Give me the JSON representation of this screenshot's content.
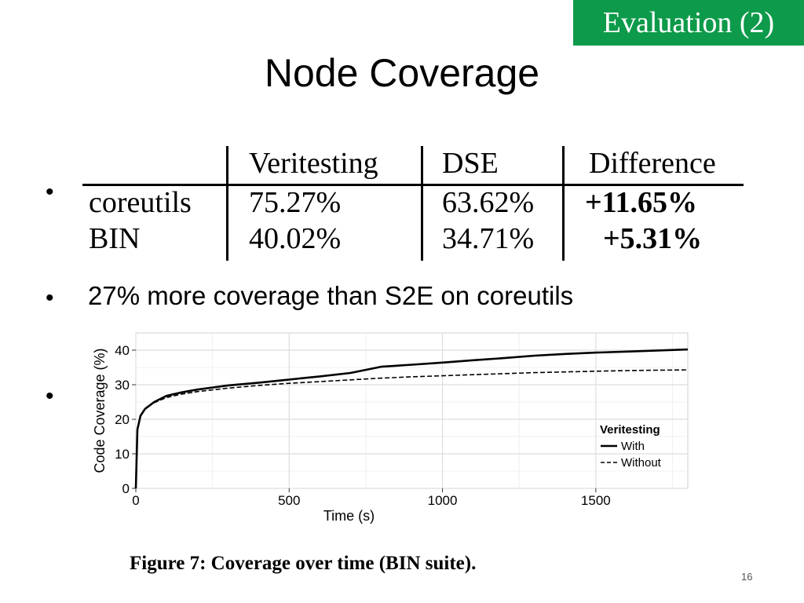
{
  "slide": {
    "badge": "Evaluation (2)",
    "title": "Node Coverage",
    "bullet_text": "27% more coverage than S2E on coreutils",
    "bullet_glyph": "•",
    "caption": "Figure 7:  Coverage over time (BIN suite).",
    "page_number": "16"
  },
  "table": {
    "headers": [
      "",
      "Veritesting",
      "DSE",
      "Difference"
    ],
    "rows": [
      [
        "coreutils",
        "75.27%",
        "63.62%",
        "+11.65%"
      ],
      [
        "BIN",
        "40.02%",
        "34.71%",
        "+5.31%"
      ]
    ]
  },
  "chart_data": {
    "type": "line",
    "xlabel": "Time (s)",
    "ylabel": "Code Coverage (%)",
    "xlim": [
      0,
      1800
    ],
    "ylim": [
      0,
      45
    ],
    "xticks": [
      0,
      500,
      1000,
      1500
    ],
    "yticks": [
      0,
      10,
      20,
      30,
      40
    ],
    "grid": true,
    "legend": {
      "title": "Veritesting",
      "placement": "bottom-right"
    },
    "series": [
      {
        "name": "With",
        "style": "solid",
        "color": "#000000",
        "points": [
          [
            0,
            0
          ],
          [
            5,
            17
          ],
          [
            15,
            21
          ],
          [
            30,
            23
          ],
          [
            60,
            25
          ],
          [
            100,
            26.8
          ],
          [
            150,
            27.8
          ],
          [
            200,
            28.6
          ],
          [
            300,
            29.8
          ],
          [
            400,
            30.6
          ],
          [
            500,
            31.5
          ],
          [
            600,
            32.4
          ],
          [
            700,
            33.4
          ],
          [
            800,
            35.2
          ],
          [
            900,
            35.8
          ],
          [
            1000,
            36.4
          ],
          [
            1100,
            37.1
          ],
          [
            1200,
            37.7
          ],
          [
            1300,
            38.4
          ],
          [
            1400,
            38.9
          ],
          [
            1500,
            39.3
          ],
          [
            1600,
            39.6
          ],
          [
            1700,
            39.9
          ],
          [
            1800,
            40.2
          ]
        ]
      },
      {
        "name": "Without",
        "style": "dashed",
        "color": "#000000",
        "points": [
          [
            0,
            0
          ],
          [
            5,
            17
          ],
          [
            15,
            21
          ],
          [
            30,
            23
          ],
          [
            60,
            24.8
          ],
          [
            100,
            26.3
          ],
          [
            150,
            27.3
          ],
          [
            200,
            28
          ],
          [
            300,
            29
          ],
          [
            400,
            29.8
          ],
          [
            500,
            30.4
          ],
          [
            600,
            30.9
          ],
          [
            700,
            31.4
          ],
          [
            800,
            31.9
          ],
          [
            900,
            32.3
          ],
          [
            1000,
            32.6
          ],
          [
            1100,
            32.9
          ],
          [
            1200,
            33.2
          ],
          [
            1300,
            33.5
          ],
          [
            1400,
            33.7
          ],
          [
            1500,
            33.9
          ],
          [
            1600,
            34.1
          ],
          [
            1700,
            34.2
          ],
          [
            1800,
            34.3
          ]
        ]
      }
    ]
  }
}
